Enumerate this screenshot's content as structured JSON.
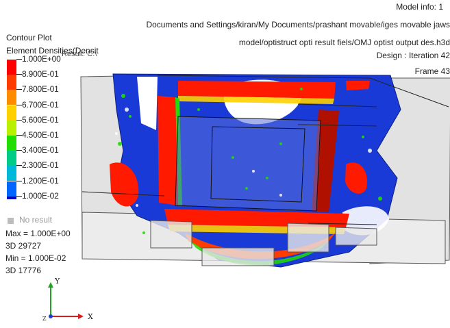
{
  "header": {
    "model_info": "Model info: 1",
    "path_line1": "Documents and Settings/kiran/My Documents/prashant movable/iges movable jaws",
    "path_line2": "model/optistruct opti result fiels/OMJ optist output  des.h3d",
    "design_iteration": "Design : Iteration 42",
    "frame": "Frame 43",
    "result_overlap": "Result: C:\\"
  },
  "legend": {
    "title1": "Contour Plot",
    "title2": "Element Densities(Densit",
    "entries": [
      {
        "label": "1.000E+00",
        "color": "#ff0000"
      },
      {
        "label": "8.900E-01",
        "color": "#ff3c00"
      },
      {
        "label": "7.800E-01",
        "color": "#ff8c00"
      },
      {
        "label": "6.700E-01",
        "color": "#ffd000"
      },
      {
        "label": "5.600E-01",
        "color": "#b8f000"
      },
      {
        "label": "4.500E-01",
        "color": "#22dd00"
      },
      {
        "label": "3.400E-01",
        "color": "#00cc88"
      },
      {
        "label": "2.300E-01",
        "color": "#00b8d8"
      },
      {
        "label": "1.200E-01",
        "color": "#0066ff"
      },
      {
        "label": "1.000E-02",
        "color": "#0000c0"
      }
    ],
    "no_result": "No result",
    "no_result_color": "#bdbdbd"
  },
  "stats": {
    "max": "Max = 1.000E+00",
    "max_elem": "3D 29727",
    "min": "Min = 1.000E-02",
    "min_elem": "3D 17776"
  },
  "triad": {
    "y_label": "Y",
    "x_label": "X",
    "z_label": "Z",
    "y_color": "#1fa51f",
    "x_color": "#d61c1c",
    "z_color": "#1f3fcf"
  },
  "colors": {
    "high_density": "#ff1a00",
    "mid_density": "#22dd00",
    "low_density": "#1a3ad8",
    "void": "#ffffff",
    "transparent_part": "#dcdcdc"
  }
}
